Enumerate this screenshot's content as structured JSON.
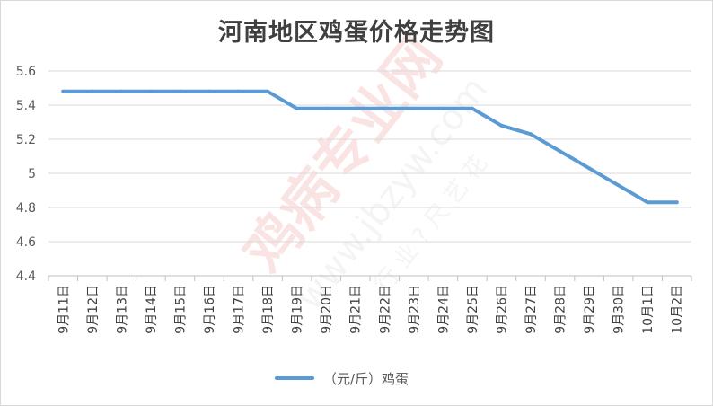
{
  "chart_data": {
    "type": "line",
    "title": "河南地区鸡蛋价格走势图",
    "categories": [
      "9月11日",
      "9月12日",
      "9月13日",
      "9月14日",
      "9月15日",
      "9月16日",
      "9月17日",
      "9月18日",
      "9月19日",
      "9月20日",
      "9月21日",
      "9月22日",
      "9月23日",
      "9月24日",
      "9月25日",
      "9月26日",
      "9月27日",
      "9月28日",
      "9月29日",
      "9月30日",
      "10月1日",
      "10月2日"
    ],
    "series": [
      {
        "name": "（元/斤）鸡蛋",
        "color": "#5b9bd5",
        "values": [
          5.48,
          5.48,
          5.48,
          5.48,
          5.48,
          5.48,
          5.48,
          5.48,
          5.38,
          5.38,
          5.38,
          5.38,
          5.38,
          5.38,
          5.38,
          5.28,
          5.23,
          5.13,
          5.03,
          4.93,
          4.83,
          4.83
        ]
      }
    ],
    "xlabel": "",
    "ylabel": "",
    "ylim": [
      4.4,
      5.6
    ],
    "yticks": [
      "4.4",
      "4.6",
      "4.8",
      "5",
      "5.2",
      "5.4",
      "5.6"
    ],
    "grid": true,
    "legend_position": "bottom"
  },
  "watermark": {
    "text_main": "鸡病专业网",
    "text_url": "www.jbzyw.com",
    "text_small": "行 业 ? 尺 艺 花"
  }
}
